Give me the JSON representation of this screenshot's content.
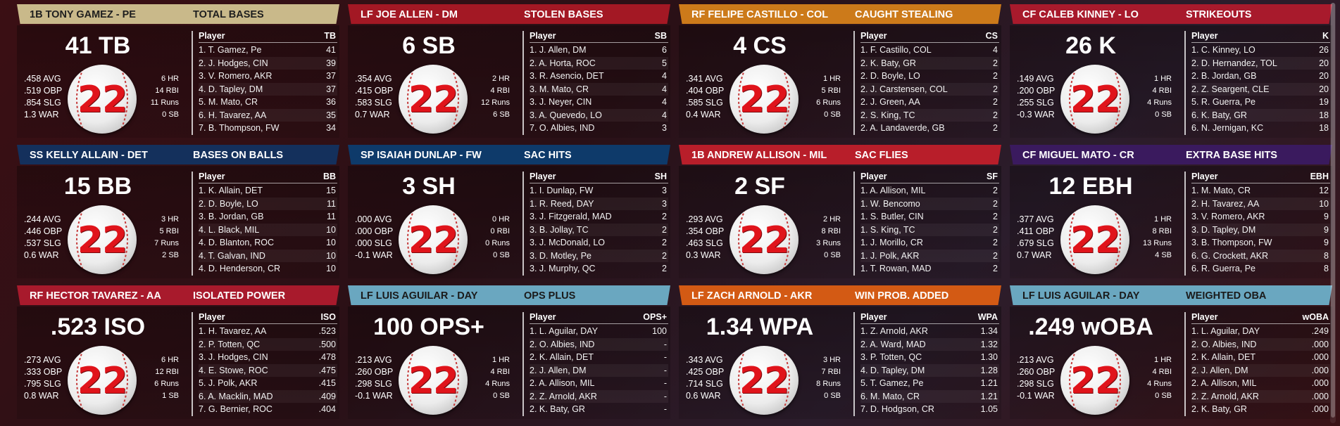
{
  "cards": [
    {
      "banner_player": "1B TONY GAMEZ - PE",
      "banner_category": "TOTAL BASES",
      "banner_color": "#c9b98a",
      "banner_text_color": "#1e1e1e",
      "big_stat": "41 TB",
      "slash": [
        ".458 AVG",
        ".519 OBP",
        ".854 SLG",
        "1.3 WAR"
      ],
      "counting": [
        "6 HR",
        "14 RBI",
        "11 Runs",
        "0 SB"
      ],
      "jersey_number": "22",
      "leaderboard": {
        "player_header": "Player",
        "stat_header": "TB",
        "rows": [
          {
            "name": "1. T. Gamez, Pe",
            "value": "41"
          },
          {
            "name": "2. J. Hodges, CIN",
            "value": "39"
          },
          {
            "name": "3. V. Romero, AKR",
            "value": "37"
          },
          {
            "name": "4. D. Tapley, DM",
            "value": "37"
          },
          {
            "name": "5. M. Mato, CR",
            "value": "36"
          },
          {
            "name": "6. H. Tavarez, AA",
            "value": "35"
          },
          {
            "name": "7. B. Thompson, FW",
            "value": "34"
          }
        ]
      }
    },
    {
      "banner_player": "LF JOE ALLEN - DM",
      "banner_category": "STOLEN BASES",
      "banner_color": "#a31824",
      "banner_text_color": "#ffffff",
      "big_stat": "6 SB",
      "slash": [
        ".354 AVG",
        ".415 OBP",
        ".583 SLG",
        "0.7 WAR"
      ],
      "counting": [
        "2 HR",
        "4 RBI",
        "12 Runs",
        "6 SB"
      ],
      "jersey_number": "22",
      "leaderboard": {
        "player_header": "Player",
        "stat_header": "SB",
        "rows": [
          {
            "name": "1. J. Allen, DM",
            "value": "6"
          },
          {
            "name": "2. A. Horta, ROC",
            "value": "5"
          },
          {
            "name": "3. R. Asencio, DET",
            "value": "4"
          },
          {
            "name": "3. M. Mato, CR",
            "value": "4"
          },
          {
            "name": "3. J. Neyer, CIN",
            "value": "4"
          },
          {
            "name": "3. A. Quevedo, LO",
            "value": "4"
          },
          {
            "name": "7. O. Albies, IND",
            "value": "3"
          }
        ]
      }
    },
    {
      "banner_player": "RF FELIPE CASTILLO - COL",
      "banner_category": "CAUGHT STEALING",
      "banner_color": "#cc7a1a",
      "banner_text_color": "#ffffff",
      "big_stat": "4 CS",
      "slash": [
        ".341 AVG",
        ".404 OBP",
        ".585 SLG",
        "0.4 WAR"
      ],
      "counting": [
        "1 HR",
        "5 RBI",
        "6 Runs",
        "0 SB"
      ],
      "jersey_number": "22",
      "leaderboard": {
        "player_header": "Player",
        "stat_header": "CS",
        "rows": [
          {
            "name": "1. F. Castillo, COL",
            "value": "4"
          },
          {
            "name": "2. K. Baty, GR",
            "value": "2"
          },
          {
            "name": "2. D. Boyle, LO",
            "value": "2"
          },
          {
            "name": "2. J. Carstensen, COL",
            "value": "2"
          },
          {
            "name": "2. J. Green, AA",
            "value": "2"
          },
          {
            "name": "2. S. King, TC",
            "value": "2"
          },
          {
            "name": "2. A. Landaverde, GB",
            "value": "2"
          }
        ]
      }
    },
    {
      "banner_player": "CF CALEB KINNEY - LO",
      "banner_category": "STRIKEOUTS",
      "banner_color": "#a81a2c",
      "banner_text_color": "#ffffff",
      "big_stat": "26 K",
      "slash": [
        ".149 AVG",
        ".200 OBP",
        ".255 SLG",
        "-0.3 WAR"
      ],
      "counting": [
        "1 HR",
        "4 RBI",
        "4 Runs",
        "0 SB"
      ],
      "jersey_number": "22",
      "leaderboard": {
        "player_header": "Player",
        "stat_header": "K",
        "rows": [
          {
            "name": "1. C. Kinney, LO",
            "value": "26"
          },
          {
            "name": "2. D. Hernandez, TOL",
            "value": "20"
          },
          {
            "name": "2. B. Jordan, GB",
            "value": "20"
          },
          {
            "name": "2. Z. Seargent, CLE",
            "value": "20"
          },
          {
            "name": "5. R. Guerra, Pe",
            "value": "19"
          },
          {
            "name": "6. K. Baty, GR",
            "value": "18"
          },
          {
            "name": "6. N. Jernigan, KC",
            "value": "18"
          }
        ]
      }
    },
    {
      "banner_player": "SS KELLY ALLAIN - DET",
      "banner_category": "BASES ON BALLS",
      "banner_color": "#14305c",
      "banner_text_color": "#ffffff",
      "big_stat": "15 BB",
      "slash": [
        ".244 AVG",
        ".446 OBP",
        ".537 SLG",
        "0.6 WAR"
      ],
      "counting": [
        "3 HR",
        "5 RBI",
        "7 Runs",
        "2 SB"
      ],
      "jersey_number": "22",
      "leaderboard": {
        "player_header": "Player",
        "stat_header": "BB",
        "rows": [
          {
            "name": "1. K. Allain, DET",
            "value": "15"
          },
          {
            "name": "2. D. Boyle, LO",
            "value": "11"
          },
          {
            "name": "3. B. Jordan, GB",
            "value": "11"
          },
          {
            "name": "4. L. Black, MIL",
            "value": "10"
          },
          {
            "name": "4. D. Blanton, ROC",
            "value": "10"
          },
          {
            "name": "4. T. Galvan, IND",
            "value": "10"
          },
          {
            "name": "4. D. Henderson, CR",
            "value": "10"
          }
        ]
      }
    },
    {
      "banner_player": "SP ISAIAH DUNLAP - FW",
      "banner_category": "SAC HITS",
      "banner_color": "#0e3a6a",
      "banner_text_color": "#ffffff",
      "big_stat": "3 SH",
      "slash": [
        ".000 AVG",
        ".000 OBP",
        ".000 SLG",
        "-0.1 WAR"
      ],
      "counting": [
        "0 HR",
        "0 RBI",
        "0 Runs",
        "0 SB"
      ],
      "jersey_number": "22",
      "leaderboard": {
        "player_header": "Player",
        "stat_header": "SH",
        "rows": [
          {
            "name": "1. I. Dunlap, FW",
            "value": "3"
          },
          {
            "name": "1. R. Reed, DAY",
            "value": "3"
          },
          {
            "name": "3. J. Fitzgerald, MAD",
            "value": "2"
          },
          {
            "name": "3. B. Jollay, TC",
            "value": "2"
          },
          {
            "name": "3. J. McDonald, LO",
            "value": "2"
          },
          {
            "name": "3. D. Motley, Pe",
            "value": "2"
          },
          {
            "name": "3. J. Murphy, QC",
            "value": "2"
          }
        ]
      }
    },
    {
      "banner_player": "1B ANDREW ALLISON - MIL",
      "banner_category": "SAC FLIES",
      "banner_color": "#b81e2a",
      "banner_text_color": "#ffffff",
      "big_stat": "2 SF",
      "slash": [
        ".293 AVG",
        ".354 OBP",
        ".463 SLG",
        "0.3 WAR"
      ],
      "counting": [
        "2 HR",
        "8 RBI",
        "3 Runs",
        "0 SB"
      ],
      "jersey_number": "22",
      "leaderboard": {
        "player_header": "Player",
        "stat_header": "SF",
        "rows": [
          {
            "name": "1. A. Allison, MIL",
            "value": "2"
          },
          {
            "name": "1. W. Bencomo",
            "value": "2"
          },
          {
            "name": "1. S. Butler, CIN",
            "value": "2"
          },
          {
            "name": "1. S. King, TC",
            "value": "2"
          },
          {
            "name": "1. J. Morillo, CR",
            "value": "2"
          },
          {
            "name": "1. J. Polk, AKR",
            "value": "2"
          },
          {
            "name": "1. T. Rowan, MAD",
            "value": "2"
          }
        ]
      }
    },
    {
      "banner_player": "CF MIGUEL MATO - CR",
      "banner_category": "EXTRA BASE HITS",
      "banner_color": "#3a1a5e",
      "banner_text_color": "#ffffff",
      "big_stat": "12 EBH",
      "slash": [
        ".377 AVG",
        ".411 OBP",
        ".679 SLG",
        "0.7 WAR"
      ],
      "counting": [
        "1 HR",
        "8 RBI",
        "13 Runs",
        "4 SB"
      ],
      "jersey_number": "22",
      "leaderboard": {
        "player_header": "Player",
        "stat_header": "EBH",
        "rows": [
          {
            "name": "1. M. Mato, CR",
            "value": "12"
          },
          {
            "name": "2. H. Tavarez, AA",
            "value": "10"
          },
          {
            "name": "3. V. Romero, AKR",
            "value": "9"
          },
          {
            "name": "3. D. Tapley, DM",
            "value": "9"
          },
          {
            "name": "3. B. Thompson, FW",
            "value": "9"
          },
          {
            "name": "6. G. Crockett, AKR",
            "value": "8"
          },
          {
            "name": "6. R. Guerra, Pe",
            "value": "8"
          }
        ]
      }
    },
    {
      "banner_player": "RF HECTOR TAVAREZ - AA",
      "banner_category": "ISOLATED POWER",
      "banner_color": "#a81a2c",
      "banner_text_color": "#ffffff",
      "big_stat": ".523 ISO",
      "slash": [
        ".273 AVG",
        ".333 OBP",
        ".795 SLG",
        "0.8 WAR"
      ],
      "counting": [
        "6 HR",
        "12 RBI",
        "6 Runs",
        "1 SB"
      ],
      "jersey_number": "22",
      "leaderboard": {
        "player_header": "Player",
        "stat_header": "ISO",
        "rows": [
          {
            "name": "1. H. Tavarez, AA",
            "value": ".523"
          },
          {
            "name": "2. P. Totten, QC",
            "value": ".500"
          },
          {
            "name": "3. J. Hodges, CIN",
            "value": ".478"
          },
          {
            "name": "4. E. Stowe, ROC",
            "value": ".475"
          },
          {
            "name": "5. J. Polk, AKR",
            "value": ".415"
          },
          {
            "name": "6. A. Macklin, MAD",
            "value": ".409"
          },
          {
            "name": "7. G. Bernier, ROC",
            "value": ".404"
          }
        ]
      }
    },
    {
      "banner_player": "LF LUIS AGUILAR - DAY",
      "banner_category": "OPS PLUS",
      "banner_color": "#6aa7c0",
      "banner_text_color": "#1a1a1a",
      "big_stat": "100 OPS+",
      "slash": [
        ".213 AVG",
        ".260 OBP",
        ".298 SLG",
        "-0.1 WAR"
      ],
      "counting": [
        "1 HR",
        "4 RBI",
        "4 Runs",
        "0 SB"
      ],
      "jersey_number": "22",
      "leaderboard": {
        "player_header": "Player",
        "stat_header": "OPS+",
        "rows": [
          {
            "name": "1. L. Aguilar, DAY",
            "value": "100"
          },
          {
            "name": "2. O. Albies, IND",
            "value": "-"
          },
          {
            "name": "2. K. Allain, DET",
            "value": "-"
          },
          {
            "name": "2. J. Allen, DM",
            "value": "-"
          },
          {
            "name": "2. A. Allison, MIL",
            "value": "-"
          },
          {
            "name": "2. Z. Arnold, AKR",
            "value": "-"
          },
          {
            "name": "2. K. Baty, GR",
            "value": "-"
          }
        ]
      }
    },
    {
      "banner_player": "LF ZACH ARNOLD - AKR",
      "banner_category": "WIN PROB. ADDED",
      "banner_color": "#d35a14",
      "banner_text_color": "#ffffff",
      "big_stat": "1.34 WPA",
      "slash": [
        ".343 AVG",
        ".425 OBP",
        ".714 SLG",
        "0.6 WAR"
      ],
      "counting": [
        "3 HR",
        "7 RBI",
        "8 Runs",
        "0 SB"
      ],
      "jersey_number": "22",
      "leaderboard": {
        "player_header": "Player",
        "stat_header": "WPA",
        "rows": [
          {
            "name": "1. Z. Arnold, AKR",
            "value": "1.34"
          },
          {
            "name": "2. A. Ward, MAD",
            "value": "1.32"
          },
          {
            "name": "3. P. Totten, QC",
            "value": "1.30"
          },
          {
            "name": "4. D. Tapley, DM",
            "value": "1.28"
          },
          {
            "name": "5. T. Gamez, Pe",
            "value": "1.21"
          },
          {
            "name": "6. M. Mato, CR",
            "value": "1.21"
          },
          {
            "name": "7. D. Hodgson, CR",
            "value": "1.05"
          }
        ]
      }
    },
    {
      "banner_player": "LF LUIS AGUILAR - DAY",
      "banner_category": "WEIGHTED OBA",
      "banner_color": "#6aa7c0",
      "banner_text_color": "#1a1a1a",
      "big_stat": ".249 wOBA",
      "slash": [
        ".213 AVG",
        ".260 OBP",
        ".298 SLG",
        "-0.1 WAR"
      ],
      "counting": [
        "1 HR",
        "4 RBI",
        "4 Runs",
        "0 SB"
      ],
      "jersey_number": "22",
      "leaderboard": {
        "player_header": "Player",
        "stat_header": "wOBA",
        "rows": [
          {
            "name": "1. L. Aguilar, DAY",
            "value": ".249"
          },
          {
            "name": "2. O. Albies, IND",
            "value": ".000"
          },
          {
            "name": "2. K. Allain, DET",
            "value": ".000"
          },
          {
            "name": "2. J. Allen, DM",
            "value": ".000"
          },
          {
            "name": "2. A. Allison, MIL",
            "value": ".000"
          },
          {
            "name": "2. Z. Arnold, AKR",
            "value": ".000"
          },
          {
            "name": "2. K. Baty, GR",
            "value": ".000"
          }
        ]
      }
    }
  ]
}
